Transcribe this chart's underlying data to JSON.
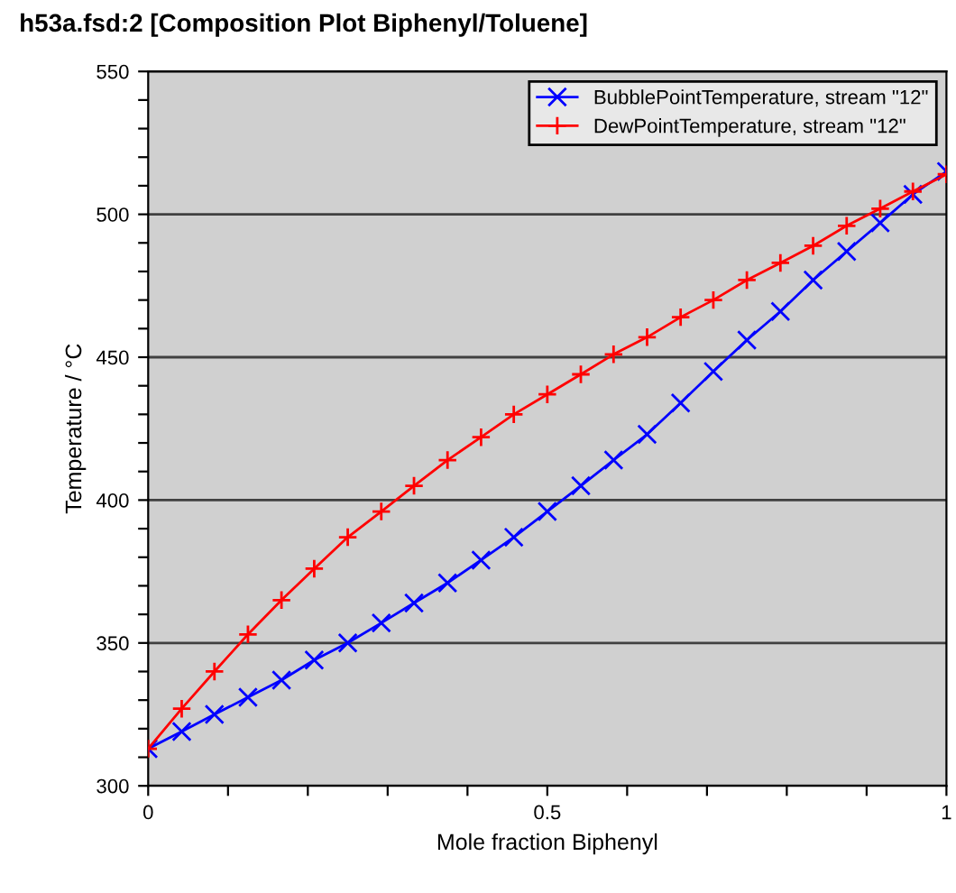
{
  "chart_data": {
    "type": "line",
    "title": "h53a.fsd:2 [Composition Plot Biphenyl/Toluene]",
    "xlabel": "Mole fraction Biphenyl",
    "ylabel": "Temperature / °C",
    "x": [
      0,
      0.042,
      0.083,
      0.125,
      0.167,
      0.208,
      0.25,
      0.292,
      0.333,
      0.375,
      0.417,
      0.458,
      0.5,
      0.542,
      0.583,
      0.625,
      0.667,
      0.708,
      0.75,
      0.792,
      0.833,
      0.875,
      0.917,
      0.958,
      1.0
    ],
    "series": [
      {
        "name": "BubblePointTemperature, stream \"12\"",
        "color": "#0000ff",
        "marker": "cross",
        "values": [
          313,
          319,
          325,
          331,
          337,
          344,
          350,
          357,
          364,
          371,
          379,
          387,
          396,
          405,
          414,
          423,
          434,
          445,
          456,
          466,
          477,
          487,
          497,
          507,
          515
        ]
      },
      {
        "name": "DewPointTemperature, stream \"12\"",
        "color": "#ff0000",
        "marker": "plus",
        "values": [
          313,
          327,
          340,
          353,
          365,
          376,
          387,
          396,
          405,
          414,
          422,
          430,
          437,
          444,
          451,
          457,
          464,
          470,
          477,
          483,
          489,
          496,
          502,
          508,
          514
        ]
      }
    ],
    "xlim": [
      0,
      1
    ],
    "ylim": [
      300,
      550
    ],
    "xticks": [
      0,
      {
        "value": 0.1,
        "label": null
      },
      {
        "value": 0.2,
        "label": null
      },
      {
        "value": 0.3,
        "label": null
      },
      {
        "value": 0.4,
        "label": null
      },
      0.5,
      {
        "value": 0.6,
        "label": null
      },
      {
        "value": 0.7,
        "label": null
      },
      {
        "value": 0.8,
        "label": null
      },
      {
        "value": 0.9,
        "label": null
      },
      1
    ],
    "yticks": [
      300,
      {
        "value": 310,
        "label": null
      },
      {
        "value": 320,
        "label": null
      },
      {
        "value": 330,
        "label": null
      },
      {
        "value": 340,
        "label": null
      },
      350,
      {
        "value": 360,
        "label": null
      },
      {
        "value": 370,
        "label": null
      },
      {
        "value": 380,
        "label": null
      },
      {
        "value": 390,
        "label": null
      },
      400,
      {
        "value": 410,
        "label": null
      },
      {
        "value": 420,
        "label": null
      },
      {
        "value": 430,
        "label": null
      },
      {
        "value": 440,
        "label": null
      },
      450,
      {
        "value": 460,
        "label": null
      },
      {
        "value": 470,
        "label": null
      },
      {
        "value": 480,
        "label": null
      },
      {
        "value": 490,
        "label": null
      },
      500,
      {
        "value": 510,
        "label": null
      },
      {
        "value": 520,
        "label": null
      },
      {
        "value": 530,
        "label": null
      },
      {
        "value": 540,
        "label": null
      },
      550
    ],
    "grid": "y",
    "legend": "top right",
    "line_style": "solid"
  }
}
